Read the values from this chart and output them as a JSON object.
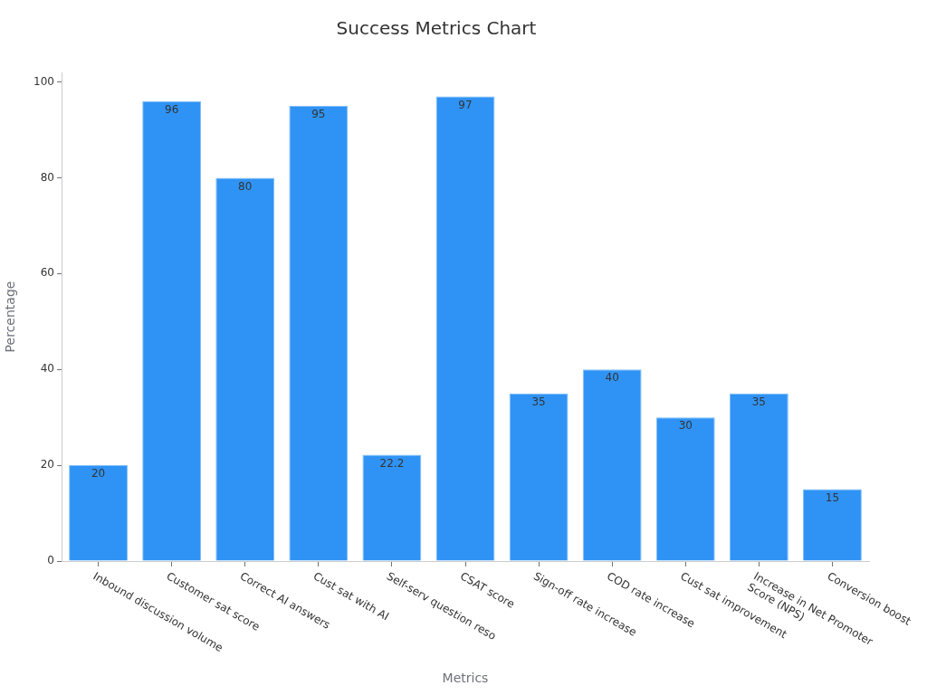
{
  "chart_data": {
    "type": "bar",
    "title": "Success Metrics Chart",
    "xlabel": "Metrics",
    "ylabel": "Percentage",
    "categories": [
      "Inbound discussion volume",
      "Customer sat score",
      "Correct AI answers",
      "Cust sat with AI",
      "Self-serv question reso",
      "CSAT score",
      "Sign-off rate increase",
      "COD rate increase",
      "Cust sat improvement",
      "Increase in Net Promoter Score (NPS)",
      "Conversion boost"
    ],
    "values": [
      20,
      96,
      80,
      95,
      22.2,
      97,
      35,
      40,
      30,
      35,
      15
    ],
    "color": "#2f93f5",
    "ylim": [
      0,
      102
    ],
    "yticks": [
      0,
      20,
      40,
      60,
      80,
      100
    ],
    "data_labels": true
  }
}
